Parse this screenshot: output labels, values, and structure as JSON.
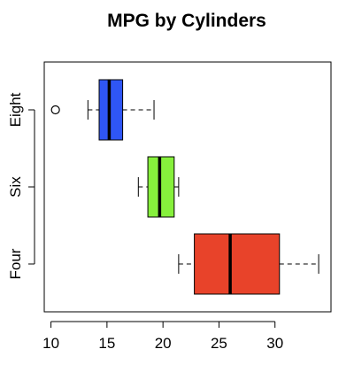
{
  "chart_data": {
    "type": "boxplot",
    "orientation": "horizontal",
    "title": "MPG by Cylinders",
    "xlabel": "",
    "ylabel": "",
    "xlim": [
      9.4,
      35.0
    ],
    "x_ticks": [
      10,
      15,
      20,
      25,
      30
    ],
    "grid": false,
    "legend": "none",
    "categories": [
      "Four",
      "Six",
      "Eight"
    ],
    "series": [
      {
        "category": "Four",
        "color": "#e8432a",
        "whisker_low": 21.4,
        "q1": 22.8,
        "median": 26.0,
        "q3": 30.4,
        "whisker_high": 33.9,
        "outliers": []
      },
      {
        "category": "Six",
        "color": "#86f03c",
        "whisker_low": 17.8,
        "q1": 18.65,
        "median": 19.7,
        "q3": 21.0,
        "whisker_high": 21.4,
        "outliers": []
      },
      {
        "category": "Eight",
        "color": "#2f56f5",
        "whisker_low": 13.3,
        "q1": 14.3,
        "median": 15.2,
        "q3": 16.4,
        "whisker_high": 19.2,
        "outliers": [
          10.4
        ]
      }
    ]
  }
}
